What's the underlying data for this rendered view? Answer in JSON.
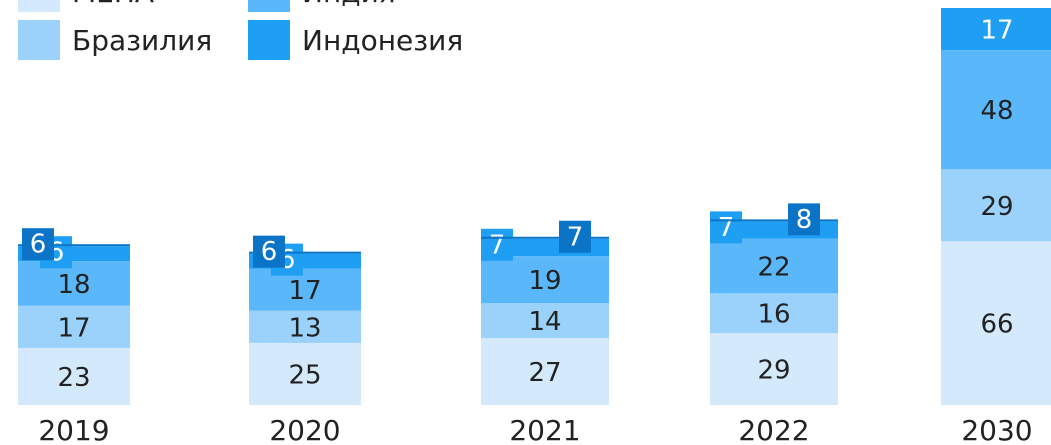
{
  "chart_data": {
    "type": "bar",
    "stacked": true,
    "categories": [
      "2019",
      "2020",
      "2021",
      "2022",
      "2030"
    ],
    "series": [
      {
        "name": "МЕНА",
        "color": "#d4eafc",
        "values": [
          23,
          25,
          27,
          29,
          66
        ]
      },
      {
        "name": "Бразилия",
        "color": "#9bd2fb",
        "values": [
          17,
          13,
          14,
          16,
          29
        ]
      },
      {
        "name": "Индия",
        "color": "#5ab7f9",
        "values": [
          18,
          17,
          19,
          22,
          48
        ]
      },
      {
        "name": "Индонезия",
        "color": "#1e9ff4",
        "values": [
          6,
          6,
          7,
          7,
          17
        ]
      }
    ],
    "markers": {
      "color": "#0b74c6",
      "values": [
        6,
        6,
        7,
        8,
        null
      ]
    },
    "ylim": [
      0,
      160
    ]
  }
}
